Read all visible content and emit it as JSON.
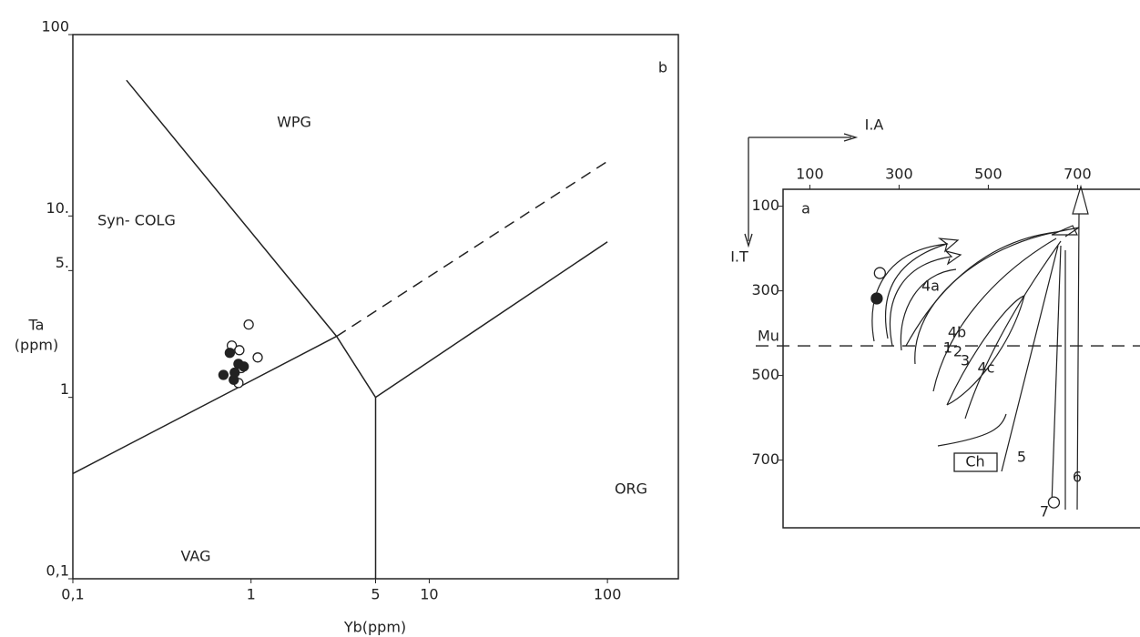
{
  "chart_data": [
    {
      "type": "scatter",
      "log_x": true,
      "log_y": true,
      "xlabel": "Yb(ppm)",
      "ylabel": [
        "Ta",
        "(ppm)"
      ],
      "xlim": [
        0.1,
        250
      ],
      "ylim": [
        0.1,
        100
      ],
      "xticks": [
        {
          "value": 0.1,
          "label": "0,1"
        },
        1,
        5,
        10,
        100
      ],
      "yticks": [
        {
          "value": 0.1,
          "label": "0,1"
        },
        1,
        {
          "value": 5,
          "label": "5."
        },
        {
          "value": 10,
          "label": "10."
        },
        100
      ],
      "annotations": [
        "b",
        "WPG",
        "Syn- COLG",
        "VAG",
        "ORG"
      ],
      "series": [
        {
          "marker": "open",
          "color": "#222",
          "x": [
            0.97,
            0.78,
            0.86,
            1.09,
            0.88,
            0.85
          ],
          "values": [
            2.52,
            1.93,
            1.82,
            1.66,
            1.45,
            1.2
          ]
        },
        {
          "marker": "filled",
          "color": "#222",
          "x": [
            0.76,
            0.85,
            0.81,
            0.7,
            0.8,
            0.91
          ],
          "values": [
            1.76,
            1.53,
            1.37,
            1.33,
            1.25,
            1.48
          ]
        }
      ],
      "lines": [
        {
          "style": "solid",
          "x": [
            0.1,
            3.02
          ],
          "values": [
            0.38,
            2.17
          ]
        },
        {
          "style": "solid",
          "x": [
            0.2,
            3.02,
            5
          ],
          "values": [
            56,
            2.17,
            1
          ]
        },
        {
          "style": "dashed",
          "x": [
            3.02,
            100
          ],
          "values": [
            2.17,
            20
          ]
        },
        {
          "style": "solid",
          "x": [
            5,
            5
          ],
          "values": [
            0.1,
            1
          ]
        },
        {
          "style": "solid",
          "x": [
            5,
            100
          ],
          "values": [
            1,
            7.2
          ]
        }
      ]
    },
    {
      "type": "scatter",
      "reversed_y": true,
      "xlabel": "I.A",
      "ylabel": "I.T",
      "xlim": [
        40,
        840
      ],
      "ylim": [
        60,
        860
      ],
      "xticks": [
        100,
        300,
        500,
        700
      ],
      "yticks": [
        100,
        300,
        500,
        700
      ],
      "reference_line": {
        "label": "Mu",
        "value": 430
      },
      "annotations": [
        "a",
        "1",
        "2",
        "3",
        "4a",
        "4b",
        "4c",
        "5",
        "6",
        "7",
        "Ch"
      ],
      "series": [
        {
          "marker": "open",
          "color": "#222",
          "x": [
            257,
            647
          ],
          "values": [
            258,
            800
          ]
        },
        {
          "marker": "filled",
          "color": "#222",
          "x": [
            250
          ],
          "values": [
            318
          ]
        }
      ]
    }
  ]
}
